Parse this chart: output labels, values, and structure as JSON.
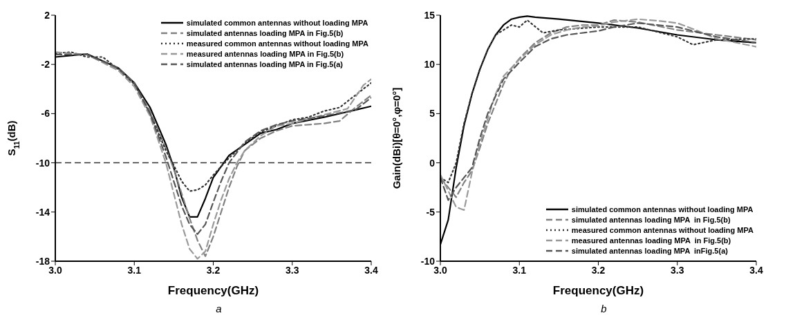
{
  "chart_data": [
    {
      "type": "line",
      "xlabel": "Frequency(GHz)",
      "ylabel": "S$_{11}$(dB)",
      "annotations": [
        "a"
      ],
      "xlim": [
        3.0,
        3.4
      ],
      "xticks": [
        {
          "value": 3.0,
          "label": "3.0"
        },
        3.1,
        3.2,
        3.3,
        3.4
      ],
      "ylim": [
        -18,
        2
      ],
      "yticks": [
        -18,
        -14,
        -10,
        -6,
        -2,
        2
      ],
      "legend": "top right",
      "marker": "none",
      "ref_lines": [
        {
          "axis": "y",
          "value": -10,
          "color": "#333333",
          "line_style": "dashed"
        }
      ],
      "series": [
        {
          "name": "simulated common antennas without loading MPA",
          "color": "#000000",
          "line_style": "solid",
          "x": [
            3.0,
            3.04,
            3.08,
            3.1,
            3.12,
            3.14,
            3.15,
            3.16,
            3.17,
            3.18,
            3.19,
            3.2,
            3.22,
            3.24,
            3.26,
            3.28,
            3.3,
            3.34,
            3.38,
            3.4
          ],
          "values": [
            -1.4,
            -1.15,
            -2.3,
            -3.5,
            -5.5,
            -8.5,
            -10.4,
            -12.8,
            -14.4,
            -14.4,
            -12.9,
            -11.2,
            -9.4,
            -8.5,
            -7.6,
            -7.3,
            -6.8,
            -6.3,
            -5.7,
            -5.4
          ]
        },
        {
          "name": "simulated antennas loading MPA in Fig.5(b)",
          "color": "#808080",
          "line_style": "dashed",
          "x": [
            3.0,
            3.04,
            3.08,
            3.1,
            3.12,
            3.14,
            3.15,
            3.16,
            3.17,
            3.18,
            3.19,
            3.2,
            3.21,
            3.22,
            3.23,
            3.24,
            3.26,
            3.28,
            3.3,
            3.34,
            3.36,
            3.38,
            3.4
          ],
          "values": [
            -1.2,
            -1.2,
            -2.4,
            -3.6,
            -5.8,
            -8.8,
            -10.5,
            -12.5,
            -14.5,
            -16.3,
            -17.6,
            -16,
            -14,
            -12,
            -10.3,
            -9,
            -8,
            -7.4,
            -7,
            -6.8,
            -6.6,
            -5.5,
            -4.5
          ]
        },
        {
          "name": "measured common antennas without loading MPA",
          "color": "#333333",
          "line_style": "dotted",
          "x": [
            3.0,
            3.02,
            3.04,
            3.06,
            3.08,
            3.1,
            3.12,
            3.14,
            3.15,
            3.16,
            3.17,
            3.18,
            3.19,
            3.2,
            3.22,
            3.24,
            3.26,
            3.28,
            3.3,
            3.32,
            3.34,
            3.36,
            3.38,
            3.4
          ],
          "values": [
            -1.1,
            -1.0,
            -1.4,
            -1.4,
            -2.4,
            -3.6,
            -6,
            -9,
            -10.2,
            -11.5,
            -12.3,
            -12.2,
            -11.8,
            -11,
            -9.6,
            -8.4,
            -7.5,
            -7,
            -6.5,
            -6.3,
            -5.8,
            -5.5,
            -4.5,
            -3.5
          ]
        },
        {
          "name": "measured antennas loading MPA in Fig.5(b)",
          "color": "#999999",
          "line_style": "dashed",
          "x": [
            3.0,
            3.04,
            3.08,
            3.1,
            3.12,
            3.14,
            3.15,
            3.16,
            3.17,
            3.18,
            3.19,
            3.2,
            3.21,
            3.22,
            3.23,
            3.24,
            3.26,
            3.28,
            3.3,
            3.34,
            3.37,
            3.39,
            3.4
          ],
          "values": [
            -1.0,
            -1.2,
            -2.5,
            -3.8,
            -6.2,
            -10,
            -12.5,
            -15,
            -17,
            -17.8,
            -17.2,
            -15,
            -13,
            -11.3,
            -10,
            -9,
            -7.8,
            -7,
            -6.8,
            -6.1,
            -5.6,
            -3.7,
            -3.2
          ]
        },
        {
          "name": "simulated antennas loading MPA in Fig.5(a)",
          "color": "#555555",
          "line_style": "dashed",
          "x": [
            3.0,
            3.04,
            3.08,
            3.1,
            3.12,
            3.14,
            3.15,
            3.16,
            3.17,
            3.18,
            3.19,
            3.2,
            3.21,
            3.22,
            3.24,
            3.26,
            3.28,
            3.3,
            3.34,
            3.38,
            3.4
          ],
          "values": [
            -1.2,
            -1.2,
            -2.3,
            -3.5,
            -6,
            -9.5,
            -11.5,
            -13.5,
            -15,
            -15.8,
            -15,
            -13.2,
            -11.5,
            -10,
            -8.3,
            -7.4,
            -6.9,
            -6.6,
            -6.2,
            -5.7,
            -4.7
          ]
        }
      ]
    },
    {
      "type": "line",
      "xlabel": "Frequency(GHz)",
      "ylabel": "Gain(dBi)[θ=0°,φ=0°]",
      "annotations": [
        "b"
      ],
      "xlim": [
        3.0,
        3.4
      ],
      "xticks": [
        {
          "value": 3.0,
          "label": "3.0"
        },
        3.1,
        3.2,
        3.3,
        3.4
      ],
      "ylim": [
        -10,
        15
      ],
      "yticks": [
        -10,
        -5,
        0,
        5,
        10,
        15
      ],
      "legend": "bottom right",
      "marker": "none",
      "series": [
        {
          "name": "simulated common antennas without loading MPA",
          "color": "#000000",
          "line_style": "solid",
          "x": [
            3.0,
            3.01,
            3.02,
            3.03,
            3.04,
            3.05,
            3.06,
            3.07,
            3.08,
            3.09,
            3.1,
            3.11,
            3.12,
            3.15,
            3.2,
            3.25,
            3.3,
            3.35,
            3.4
          ],
          "values": [
            -8.3,
            -5.8,
            -0.5,
            3.8,
            7,
            9.5,
            11.5,
            13,
            14,
            14.6,
            14.8,
            14.9,
            14.8,
            14.6,
            14.2,
            13.7,
            13.0,
            12.5,
            12.2
          ]
        },
        {
          "name": "simulated antennas loading MPA  in Fig.5(b)",
          "color": "#808080",
          "line_style": "dashed",
          "x": [
            3.0,
            3.02,
            3.03,
            3.04,
            3.05,
            3.06,
            3.07,
            3.08,
            3.09,
            3.1,
            3.12,
            3.14,
            3.16,
            3.18,
            3.2,
            3.22,
            3.25,
            3.3,
            3.35,
            3.4
          ],
          "values": [
            -1.5,
            -3.5,
            -2,
            -0.8,
            1.5,
            4,
            6,
            8,
            9.6,
            10.6,
            12.2,
            13.2,
            13.8,
            14,
            14,
            14.5,
            14.3,
            13.5,
            13,
            12.5
          ]
        },
        {
          "name": "measured common antennas without loading MPA",
          "color": "#333333",
          "line_style": "dotted",
          "x": [
            3.0,
            3.01,
            3.02,
            3.03,
            3.04,
            3.05,
            3.06,
            3.07,
            3.09,
            3.1,
            3.11,
            3.13,
            3.15,
            3.2,
            3.25,
            3.3,
            3.32,
            3.35,
            3.4
          ],
          "values": [
            -1.5,
            -2,
            0,
            4,
            7,
            9.5,
            11.5,
            13,
            14,
            13.8,
            14.5,
            13.2,
            13.5,
            13.8,
            13.8,
            12.8,
            12,
            12.5,
            12.6
          ]
        },
        {
          "name": "measured antennas loading MPA  in Fig.5(b)",
          "color": "#999999",
          "line_style": "dashed",
          "x": [
            3.0,
            3.02,
            3.03,
            3.04,
            3.05,
            3.06,
            3.07,
            3.08,
            3.1,
            3.12,
            3.14,
            3.16,
            3.18,
            3.2,
            3.22,
            3.25,
            3.28,
            3.3,
            3.32,
            3.35,
            3.4
          ],
          "values": [
            -1.2,
            -4.5,
            -4.8,
            -1,
            2,
            4.5,
            7,
            8.8,
            10.5,
            12,
            13,
            13.5,
            13.8,
            13.9,
            14.3,
            14.6,
            14.4,
            14.2,
            13.6,
            12.6,
            11.8
          ]
        },
        {
          "name": "simulated antennas loading MPA  inFig.5(a)",
          "color": "#555555",
          "line_style": "dashed",
          "x": [
            3.0,
            3.01,
            3.02,
            3.04,
            3.05,
            3.06,
            3.07,
            3.08,
            3.1,
            3.12,
            3.14,
            3.16,
            3.2,
            3.22,
            3.25,
            3.3,
            3.35,
            3.4
          ],
          "values": [
            -1.5,
            -3.8,
            -2.5,
            -0.5,
            2.5,
            5,
            6.8,
            8.5,
            10.2,
            11.8,
            12.6,
            13,
            13.4,
            13.8,
            14.2,
            13.8,
            12.8,
            12.2
          ]
        }
      ]
    }
  ]
}
